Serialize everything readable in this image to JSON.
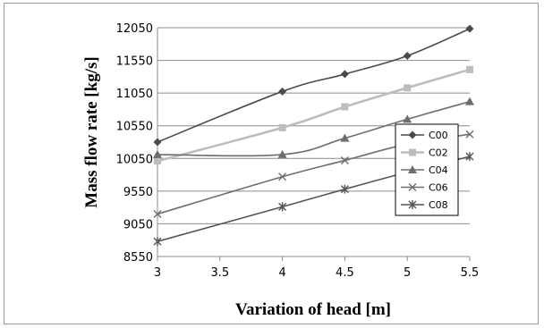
{
  "chart_data": {
    "type": "line",
    "title": "",
    "xlabel": "Variation of head [m]",
    "ylabel": "Mass flow rate [kg/s]",
    "x": [
      3,
      3.5,
      4,
      4.5,
      5,
      5.5
    ],
    "x_tick_labels": [
      "3",
      "3.5",
      "4",
      "4.5",
      "5",
      "5.5"
    ],
    "xlim": [
      3,
      5.5
    ],
    "ylim": [
      8550,
      12050
    ],
    "y_ticks": [
      8550,
      9050,
      9550,
      10050,
      10550,
      11050,
      11550,
      12050
    ],
    "y_tick_labels": [
      "8550",
      "9050",
      "9550",
      "10050",
      "10550",
      "11050",
      "11550",
      "12050"
    ],
    "grid": "horizontal",
    "legend_position": "right",
    "series": [
      {
        "name": "C00",
        "color": "#4a4a4a",
        "marker": "diamond",
        "width": 1.6,
        "x": [
          3,
          4,
          4.5,
          5,
          5.5
        ],
        "values": [
          10300,
          11075,
          11340,
          11620,
          12035
        ]
      },
      {
        "name": "C02",
        "color": "#bdbdbd",
        "marker": "square",
        "width": 2.6,
        "x": [
          3,
          4,
          4.5,
          5,
          5.5
        ],
        "values": [
          10010,
          10520,
          10840,
          11130,
          11410
        ]
      },
      {
        "name": "C04",
        "color": "#6e6e6e",
        "marker": "triangle",
        "width": 1.6,
        "x": [
          3,
          4,
          4.5,
          5,
          5.5
        ],
        "values": [
          10110,
          10110,
          10360,
          10650,
          10920
        ]
      },
      {
        "name": "C06",
        "color": "#6e6e6e",
        "marker": "x",
        "width": 1.6,
        "x": [
          3,
          4,
          4.5,
          5,
          5.5
        ],
        "values": [
          9200,
          9770,
          10020,
          10270,
          10420
        ]
      },
      {
        "name": "C08",
        "color": "#555555",
        "marker": "asterisk",
        "width": 1.6,
        "x": [
          3,
          4,
          4.5,
          5,
          5.5
        ],
        "values": [
          8780,
          9310,
          9580,
          9840,
          10080
        ]
      }
    ]
  }
}
